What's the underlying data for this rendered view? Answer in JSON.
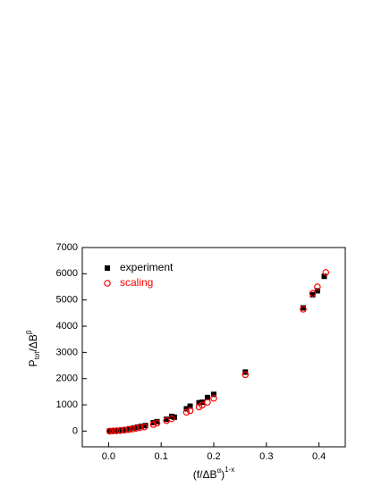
{
  "chart_data": {
    "type": "scatter",
    "x_label": {
      "base": "(f/ΔB",
      "sup": "α",
      "mid": ")",
      "sup2": "1-x"
    },
    "y_label": {
      "base": "P",
      "sub": "tot",
      "mid": "/ΔB",
      "sup": "β"
    },
    "xlim": [
      -0.05,
      0.45
    ],
    "ylim": [
      -600,
      7000
    ],
    "xticks": [
      {
        "value": 0,
        "label": "0.0"
      },
      0.1,
      0.2,
      0.3,
      0.4
    ],
    "yticks": [
      0,
      1000,
      2000,
      3000,
      4000,
      5000,
      6000,
      7000
    ],
    "legend": "upper-left",
    "series": [
      {
        "name": "experiment",
        "color": "#000000",
        "marker": "square",
        "x": [
          0.002,
          0.007,
          0.012,
          0.018,
          0.025,
          0.032,
          0.04,
          0.048,
          0.055,
          0.062,
          0.07,
          0.085,
          0.092,
          0.11,
          0.12,
          0.125,
          0.148,
          0.155,
          0.172,
          0.178,
          0.188,
          0.2,
          0.26,
          0.37,
          0.388,
          0.397,
          0.41
        ],
        "values": [
          5,
          10,
          15,
          25,
          40,
          60,
          90,
          120,
          150,
          180,
          210,
          320,
          360,
          450,
          560,
          530,
          850,
          950,
          1080,
          1100,
          1280,
          1400,
          2250,
          4700,
          5200,
          5350,
          5900
        ]
      },
      {
        "name": "scaling",
        "color": "#ff0000",
        "marker": "circle",
        "x": [
          0.002,
          0.008,
          0.015,
          0.022,
          0.03,
          0.038,
          0.045,
          0.052,
          0.06,
          0.068,
          0.085,
          0.092,
          0.11,
          0.12,
          0.148,
          0.155,
          0.172,
          0.178,
          0.188,
          0.2,
          0.26,
          0.37,
          0.388,
          0.397,
          0.413
        ],
        "values": [
          0,
          5,
          10,
          20,
          35,
          55,
          80,
          100,
          130,
          160,
          250,
          300,
          400,
          470,
          720,
          780,
          920,
          990,
          1100,
          1250,
          2150,
          4650,
          5250,
          5500,
          6050
        ]
      }
    ]
  }
}
